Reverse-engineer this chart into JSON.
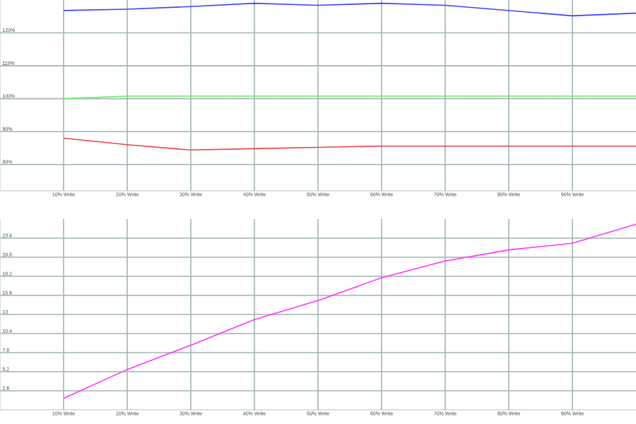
{
  "chart_data": [
    {
      "type": "line",
      "x": [
        10,
        20,
        30,
        40,
        50,
        60,
        70,
        80,
        90,
        100
      ],
      "xlim": [
        0,
        100
      ],
      "xticks": [
        {
          "value": 10,
          "label": "10% Write"
        },
        {
          "value": 20,
          "label": "20% Write"
        },
        {
          "value": 30,
          "label": "30% Write"
        },
        {
          "value": 40,
          "label": "40% Write"
        },
        {
          "value": 50,
          "label": "50% Write"
        },
        {
          "value": 60,
          "label": "60% Write"
        },
        {
          "value": 70,
          "label": "70% Write"
        },
        {
          "value": 80,
          "label": "80% Write"
        },
        {
          "value": 90,
          "label": "90% Write"
        }
      ],
      "ylim": [
        72,
        130
      ],
      "yticks": [
        {
          "value": 80,
          "label": "80%"
        },
        {
          "value": 90,
          "label": "90%"
        },
        {
          "value": 100,
          "label": "100%"
        },
        {
          "value": 110,
          "label": "110%"
        },
        {
          "value": 120,
          "label": "120%"
        }
      ],
      "grid": true,
      "marker": "none",
      "line_style": "solid",
      "ref_lines": [
        {
          "axis": "y",
          "value": 100,
          "color": "#c8c8c8",
          "line_style": "dotted"
        }
      ],
      "series": [
        {
          "color": "#4040ff",
          "values": [
            126.8,
            127.2,
            128,
            129,
            128.4,
            129,
            128.4,
            126.8,
            125.2,
            126
          ]
        },
        {
          "color": "#66ee66",
          "values": [
            100,
            100.8,
            100.8,
            100.8,
            100.8,
            100.8,
            100.8,
            100.8,
            100.8,
            100.8
          ]
        },
        {
          "color": "#ee4444",
          "values": [
            88,
            86,
            84.4,
            84.8,
            85.2,
            85.6,
            85.6,
            85.6,
            85.6,
            85.6
          ]
        }
      ]
    },
    {
      "type": "line",
      "x": [
        10,
        20,
        30,
        40,
        50,
        60,
        70,
        80,
        90,
        100
      ],
      "xlim": [
        0,
        100
      ],
      "xticks": [
        {
          "value": 10,
          "label": "10% Write"
        },
        {
          "value": 20,
          "label": "20% Write"
        },
        {
          "value": 30,
          "label": "30% Write"
        },
        {
          "value": 40,
          "label": "40% Write"
        },
        {
          "value": 50,
          "label": "50% Write"
        },
        {
          "value": 60,
          "label": "60% Write"
        },
        {
          "value": 70,
          "label": "70% Write"
        },
        {
          "value": 80,
          "label": "80% Write"
        },
        {
          "value": 90,
          "label": "90% Write"
        }
      ],
      "ylim": [
        0,
        26
      ],
      "yticks": [
        2.6,
        5.2,
        7.8,
        10.4,
        13,
        15.6,
        18.2,
        20.8,
        23.4
      ],
      "grid": true,
      "marker": "none",
      "line_style": "solid",
      "series": [
        {
          "color": "#ff33ff",
          "values": [
            1.56,
            5.5,
            8.8,
            12.3,
            14.9,
            18.0,
            20.3,
            21.8,
            22.7,
            25.3
          ]
        }
      ]
    }
  ]
}
